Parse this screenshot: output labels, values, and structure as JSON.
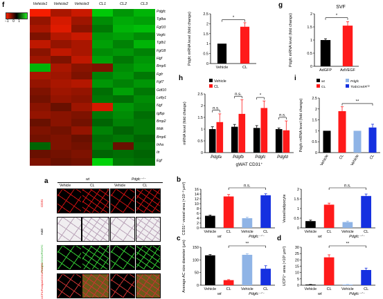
{
  "colors": {
    "vehicle": "#000000",
    "cl": "#ff1a1a",
    "ko_vehicle": "#8fb4e6",
    "ko_cl": "#1530e0",
    "adgfp": "#000000",
    "advegf": "#ff1a1a",
    "heat_high": "#ff2200",
    "heat_low": "#22ee22"
  },
  "panel_f": {
    "letter": "f",
    "scale_min": "−1",
    "scale_zero": "0",
    "scale_max": "1",
    "columns": [
      "Vehicle1",
      "Vehicle2",
      "Vehicle3",
      "CL1",
      "CL2",
      "CL3"
    ],
    "genes": [
      "Pdgfc",
      "Tgfba",
      "Fgf10",
      "Vegfc",
      "Tgfb1",
      "Fgf18",
      "Hgf",
      "Bmp5",
      "Fgfr",
      "Fgf7",
      "Gdf10",
      "Lefty1",
      "Ngf",
      "Igfbp",
      "Bmp2",
      "Mdk",
      "Bmp6",
      "Inha",
      "Itr",
      "Egf"
    ],
    "values": [
      [
        0.95,
        0.6,
        0.75,
        -0.8,
        -0.55,
        -0.7
      ],
      [
        0.5,
        0.8,
        0.55,
        -0.5,
        -0.65,
        -0.6
      ],
      [
        0.6,
        0.85,
        0.45,
        -0.4,
        -0.7,
        -0.75
      ],
      [
        0.4,
        0.65,
        0.75,
        -0.55,
        -0.6,
        -0.5
      ],
      [
        0.7,
        0.5,
        0.6,
        -0.6,
        -0.45,
        -0.7
      ],
      [
        0.45,
        0.7,
        0.6,
        -0.5,
        -0.55,
        -0.45
      ],
      [
        0.55,
        0.4,
        0.7,
        -0.6,
        -0.4,
        -0.55
      ],
      [
        -0.7,
        0.6,
        0.45,
        0.4,
        -0.5,
        -0.6
      ],
      [
        0.6,
        0.55,
        0.4,
        -0.45,
        -0.55,
        -0.4
      ],
      [
        0.5,
        0.6,
        0.65,
        -0.55,
        -0.45,
        -0.55
      ],
      [
        0.4,
        0.55,
        0.5,
        -0.35,
        -0.6,
        -0.4
      ],
      [
        0.35,
        0.5,
        0.45,
        -0.4,
        -0.35,
        -0.5
      ],
      [
        0.45,
        0.3,
        0.55,
        0.8,
        -0.55,
        -0.45
      ],
      [
        0.5,
        0.45,
        0.4,
        -0.4,
        -0.5,
        -0.35
      ],
      [
        0.3,
        0.45,
        0.35,
        -0.3,
        -0.45,
        -0.4
      ],
      [
        0.4,
        0.35,
        0.5,
        -0.45,
        -0.3,
        -0.4
      ],
      [
        0.35,
        0.4,
        0.3,
        -0.35,
        -0.4,
        -0.3
      ],
      [
        -0.3,
        0.4,
        0.35,
        -0.4,
        0.3,
        -0.35
      ],
      [
        0.3,
        0.35,
        0.4,
        -0.3,
        -0.35,
        -0.3
      ],
      [
        0.4,
        0.3,
        0.35,
        -0.85,
        -0.4,
        -0.35
      ]
    ]
  },
  "panel_f2": {
    "ylabel": "Pdgfc mRNA level (fold change)",
    "categories": [
      "Vehicle",
      "CL"
    ],
    "values": [
      1.0,
      1.85
    ],
    "errors": [
      0,
      0.2
    ],
    "ylim": [
      0,
      2.5
    ],
    "yticks": [
      "0",
      "0.5",
      "1",
      "1.5",
      "2",
      "2.5"
    ],
    "sig": "*"
  },
  "panel_g": {
    "letter": "g",
    "title": "SVF",
    "ylabel": "Pdgfc mRNA level (fold change)",
    "categories": [
      "AdGFP",
      "AdVEGF"
    ],
    "values": [
      1.0,
      1.55
    ],
    "errors": [
      0.05,
      0.15
    ],
    "ylim": [
      0,
      2
    ],
    "yticks": [
      "0",
      "0.5",
      "1",
      "1.5",
      "2"
    ],
    "sig": "*"
  },
  "panel_h": {
    "letter": "h",
    "ylabel": "mRNA level (fold change)",
    "xlabel": "gWAT CD31⁺",
    "legend": [
      "Vehicle",
      "CL"
    ],
    "categories": [
      "Pdgfa",
      "Pdgfb",
      "Pdgfc",
      "Pdgfd"
    ],
    "vehicle": [
      1.0,
      1.1,
      1.05,
      1.0
    ],
    "cl": [
      1.3,
      1.65,
      1.9,
      0.95
    ],
    "vehicle_err": [
      0.1,
      0.1,
      0.1,
      0.05
    ],
    "cl_err": [
      0.35,
      0.6,
      0.3,
      0.4
    ],
    "sig": [
      "n.s.",
      "n.s.",
      "*",
      "n.s."
    ],
    "ylim": [
      0,
      2.5
    ],
    "yticks": [
      "0",
      "0.5",
      "1",
      "1.5",
      "2",
      "2.5"
    ]
  },
  "panel_i": {
    "letter": "i",
    "ylabel": "Pdgfc mRNA level (fold change)",
    "legend": [
      "wt",
      "CL",
      "Pdgfc",
      "TtabCreERᵀ²"
    ],
    "categories": [
      "Vehicle",
      "CL",
      "Vehicle",
      "CL"
    ],
    "values": [
      1.0,
      1.9,
      1.0,
      1.15
    ],
    "errors": [
      0,
      0.2,
      0,
      0.15
    ],
    "ylim": [
      0,
      2.5
    ],
    "yticks": [
      "0",
      "0.5",
      "1",
      "1.5",
      "2",
      "2.5"
    ],
    "sig": "**"
  },
  "panel_a": {
    "letter": "a",
    "genotypes": [
      "wt",
      "Pdgfc⁻ᐟ⁻"
    ],
    "treatments": [
      "Vehicle",
      "CL",
      "Vehicle",
      "CL"
    ],
    "rows": [
      "CD31",
      "H&E",
      "Perilipin/CD31/PDGFC",
      "UCP1/Perilipin/CD31/PDGFC"
    ]
  },
  "panel_b": {
    "letter": "b",
    "chart_data": [
      {
        "type": "bar",
        "ylabel": "CD31⁺ vessel area (×10⁻³ µm²)",
        "categories": [
          "Vehicle",
          "CL",
          "Vehicle",
          "CL"
        ],
        "values": [
          5,
          13,
          4,
          13.5
        ],
        "errors": [
          0.3,
          0.8,
          0.4,
          0.6
        ],
        "ylim": [
          0,
          16
        ],
        "yticks": [
          "0",
          "2",
          "4",
          "6",
          "8",
          "10",
          "12",
          "14",
          "16"
        ],
        "groups": [
          "wt",
          "Pdgfc⁻ᐟ⁻"
        ],
        "sig": "n.s."
      },
      {
        "type": "bar",
        "ylabel": "Vessel/adipocyte",
        "categories": [
          "Vehicle",
          "CL",
          "Vehicle",
          "CL"
        ],
        "values": [
          0.35,
          1.2,
          0.3,
          1.65
        ],
        "errors": [
          0.05,
          0.08,
          0.05,
          0.1
        ],
        "ylim": [
          0,
          2
        ],
        "yticks": [
          "0",
          "0.5",
          "1",
          "1.5",
          "2"
        ],
        "groups": [
          "wt",
          "Pdgfc⁻ᐟ⁻"
        ],
        "sig": "n.s."
      }
    ]
  },
  "panel_c": {
    "letter": "c",
    "chart_data": {
      "type": "bar",
      "ylabel": "Average AC size diameter (µm)",
      "categories": [
        "Vehicle",
        "CL",
        "Vehicle",
        "CL"
      ],
      "values": [
        118,
        20,
        120,
        65
      ],
      "errors": [
        3,
        2,
        4,
        12
      ],
      "ylim": [
        0,
        150
      ],
      "yticks": [
        "0",
        "50",
        "100",
        "150"
      ],
      "groups": [
        "wt",
        "Pdgfc⁻ᐟ⁻"
      ],
      "sig": "**"
    }
  },
  "panel_d": {
    "letter": "d",
    "chart_data": {
      "type": "bar",
      "ylabel": "UCP1⁺ area (×10³ µm²)",
      "categories": [
        "Vehicle",
        "CL",
        "Vehicle",
        "CL"
      ],
      "values": [
        0.5,
        22,
        0.5,
        12
      ],
      "errors": [
        0.1,
        2,
        0.1,
        1.5
      ],
      "ylim": [
        0,
        30
      ],
      "yticks": [
        "0",
        "5",
        "10",
        "15",
        "20",
        "25",
        "30"
      ],
      "groups": [
        "wt",
        "Pdgfc⁻ᐟ⁻"
      ],
      "sig": "**"
    }
  }
}
